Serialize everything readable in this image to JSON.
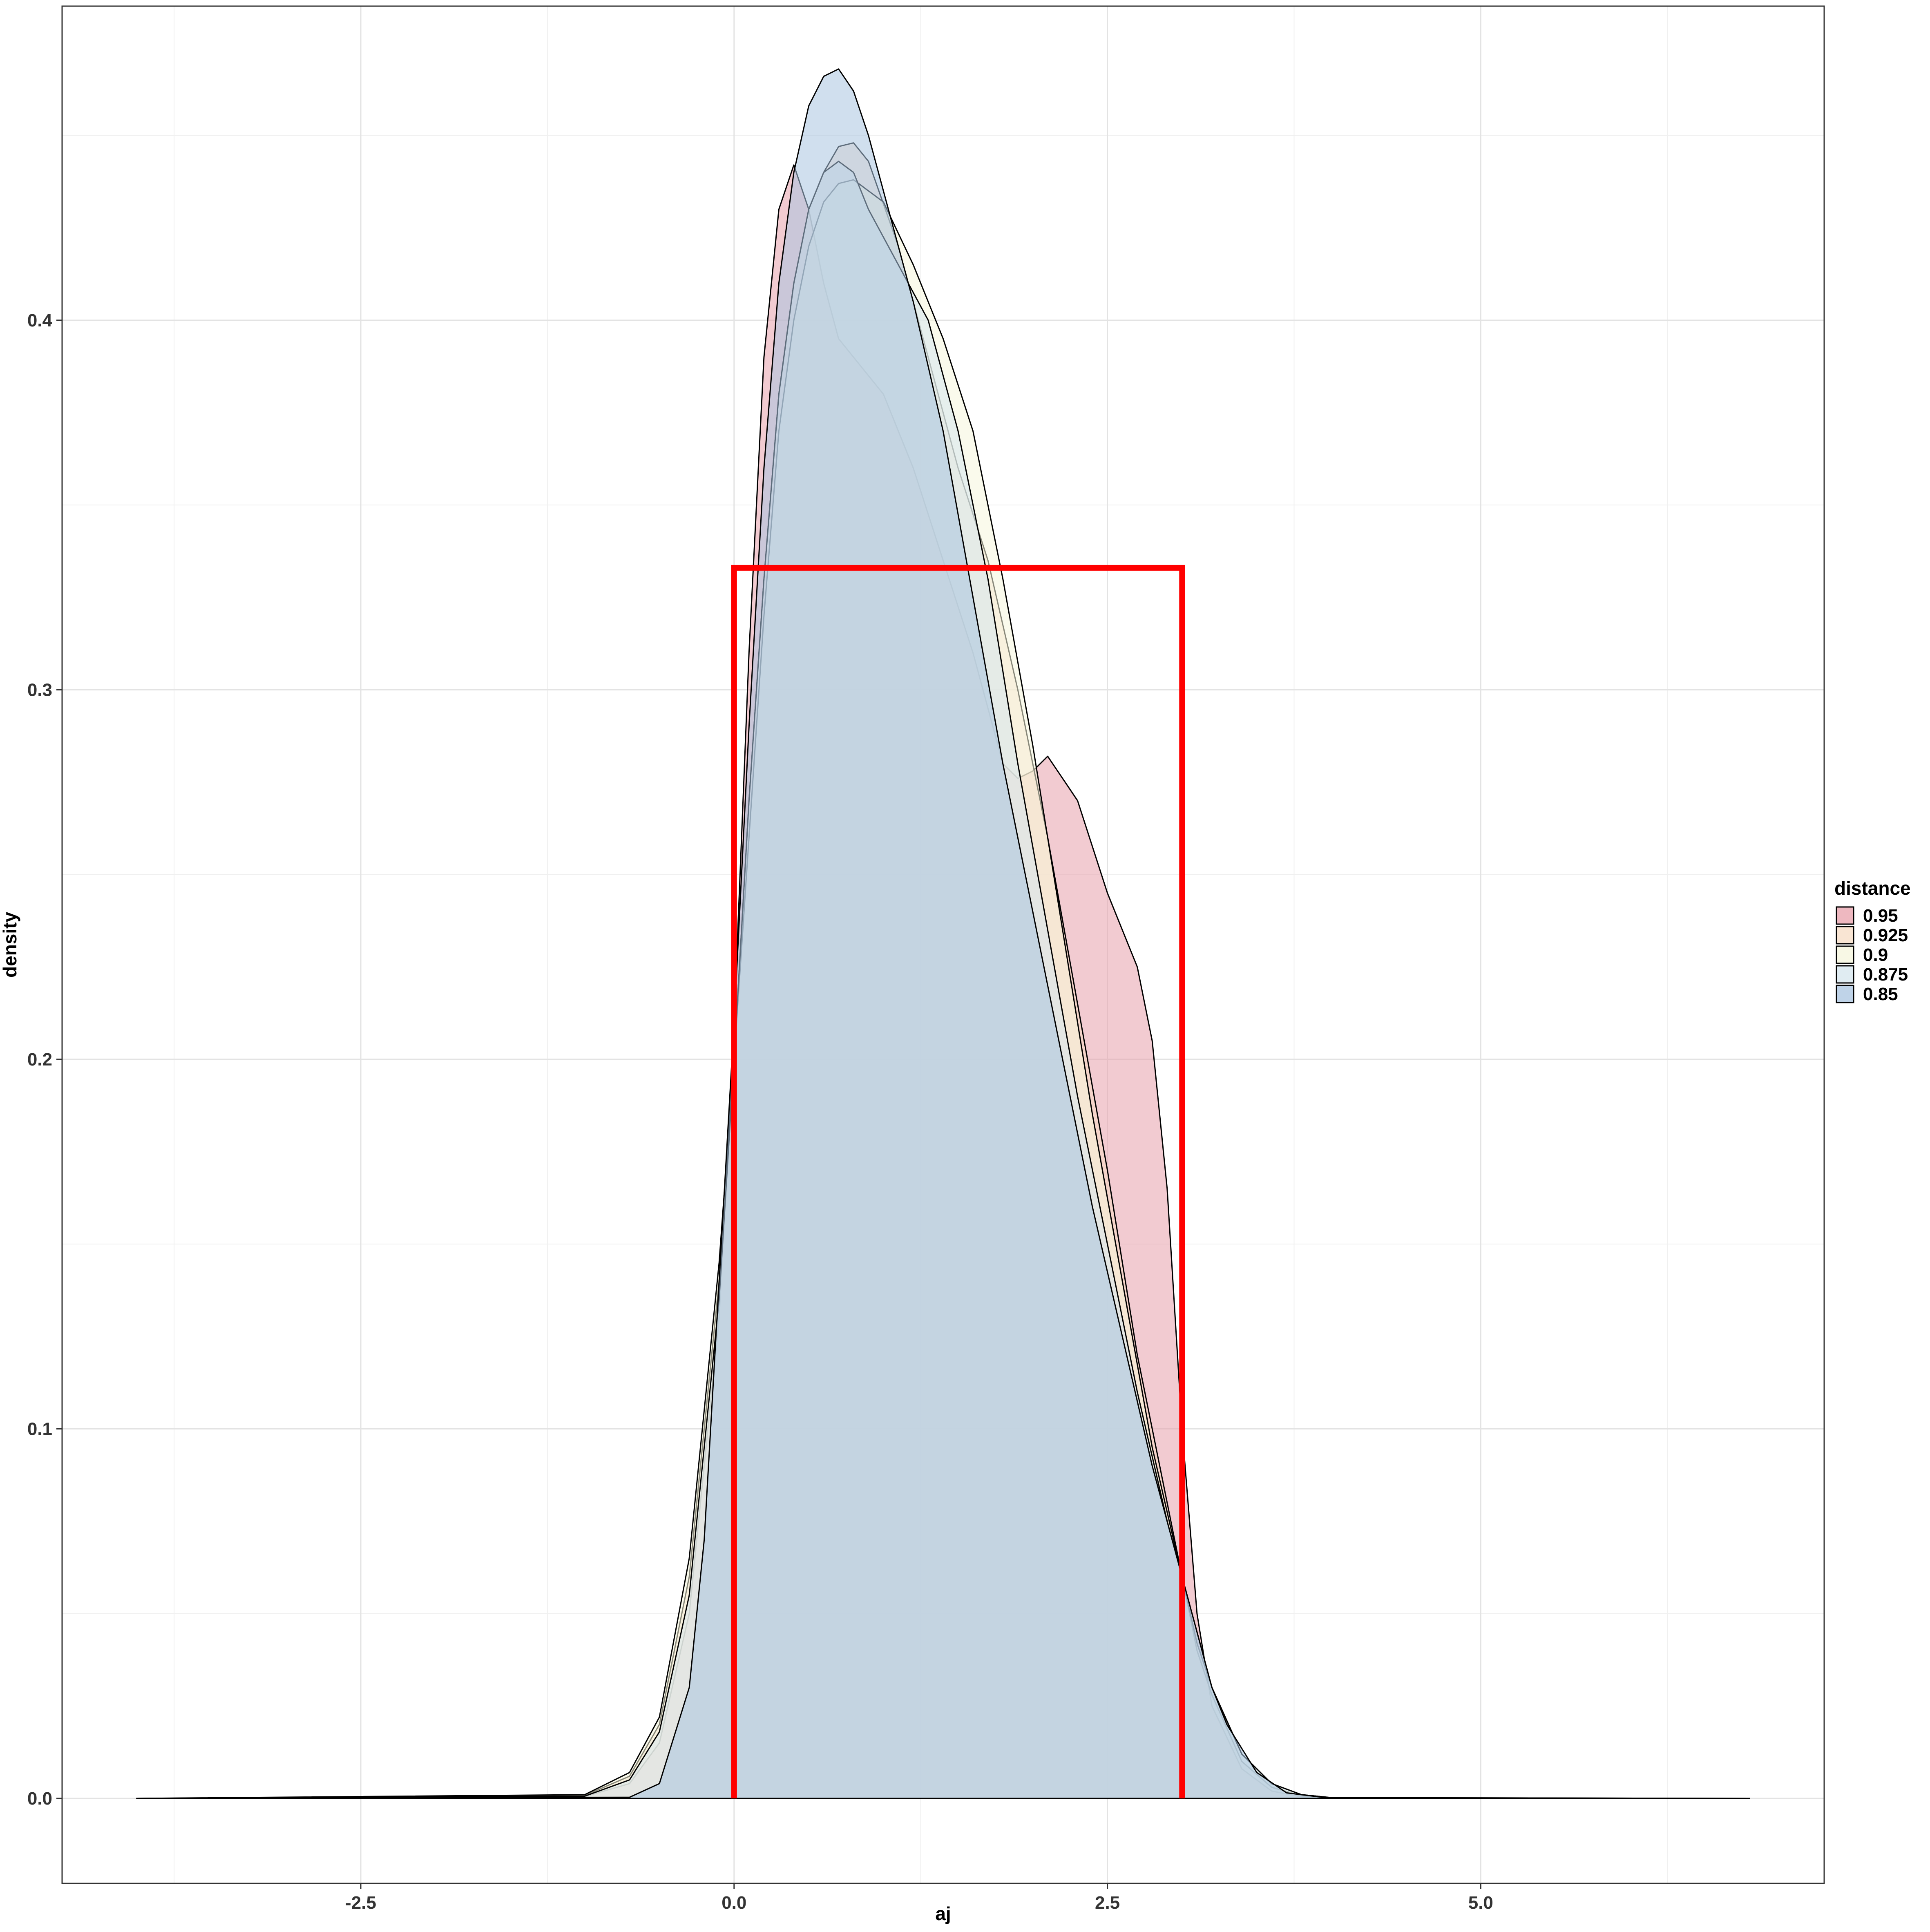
{
  "chart_data": {
    "type": "area",
    "xlabel": "aj",
    "ylabel": "density",
    "xlim": [
      -4.5,
      7.3
    ],
    "ylim": [
      -0.023,
      0.485
    ],
    "x_ticks": [
      -2.5,
      0.0,
      2.5,
      5.0
    ],
    "x_tick_labels": [
      "-2.5",
      "0.0",
      "2.5",
      "5.0"
    ],
    "y_ticks": [
      0.0,
      0.1,
      0.2,
      0.3,
      0.4
    ],
    "y_tick_labels": [
      "0.0",
      "0.1",
      "0.2",
      "0.3",
      "0.4"
    ],
    "grid": true,
    "legend": {
      "title": "distance",
      "position": "right",
      "entries": [
        {
          "label": "0.95",
          "color": "#e8a0ab"
        },
        {
          "label": "0.925",
          "color": "#f7dcc4"
        },
        {
          "label": "0.9",
          "color": "#f5f5dc"
        },
        {
          "label": "0.875",
          "color": "#d6e6ee"
        },
        {
          "label": "0.85",
          "color": "#a9c4e0"
        }
      ]
    },
    "series": [
      {
        "name": "0.95",
        "color": "#e8a0ab",
        "x": [
          -4.0,
          -1.0,
          -0.7,
          -0.5,
          -0.3,
          -0.1,
          0.0,
          0.1,
          0.2,
          0.3,
          0.4,
          0.5,
          0.6,
          0.7,
          0.9,
          1.0,
          1.2,
          1.4,
          1.6,
          1.8,
          1.9,
          2.0,
          2.1,
          2.3,
          2.5,
          2.6,
          2.7,
          2.8,
          2.9,
          3.0,
          3.1,
          3.2,
          3.4,
          3.6,
          3.8,
          4.0,
          6.8
        ],
        "y": [
          0.0,
          0.0005,
          0.004,
          0.015,
          0.05,
          0.13,
          0.21,
          0.31,
          0.39,
          0.43,
          0.442,
          0.43,
          0.41,
          0.395,
          0.385,
          0.38,
          0.36,
          0.335,
          0.31,
          0.28,
          0.276,
          0.278,
          0.282,
          0.27,
          0.245,
          0.235,
          0.225,
          0.205,
          0.165,
          0.1,
          0.05,
          0.025,
          0.008,
          0.002,
          0.0004,
          0.0,
          0.0
        ]
      },
      {
        "name": "0.925",
        "color": "#f7dcc4",
        "x": [
          -4.0,
          -1.0,
          -0.7,
          -0.5,
          -0.3,
          -0.1,
          0.0,
          0.1,
          0.2,
          0.3,
          0.4,
          0.5,
          0.6,
          0.7,
          0.8,
          0.9,
          1.1,
          1.3,
          1.5,
          1.7,
          1.9,
          2.1,
          2.3,
          2.5,
          2.7,
          2.9,
          3.0,
          3.1,
          3.2,
          3.4,
          3.6,
          3.8,
          4.0,
          6.8
        ],
        "y": [
          0.0,
          0.0008,
          0.006,
          0.02,
          0.06,
          0.14,
          0.2,
          0.27,
          0.33,
          0.38,
          0.41,
          0.43,
          0.44,
          0.447,
          0.448,
          0.443,
          0.42,
          0.39,
          0.36,
          0.335,
          0.3,
          0.26,
          0.215,
          0.17,
          0.12,
          0.08,
          0.06,
          0.04,
          0.028,
          0.01,
          0.003,
          0.0007,
          0.0001,
          0.0
        ]
      },
      {
        "name": "0.9",
        "color": "#f5f5dc",
        "x": [
          -4.0,
          -1.0,
          -0.7,
          -0.5,
          -0.3,
          -0.1,
          0.0,
          0.1,
          0.2,
          0.3,
          0.4,
          0.5,
          0.6,
          0.7,
          0.8,
          1.0,
          1.2,
          1.4,
          1.6,
          1.8,
          2.0,
          2.2,
          2.4,
          2.6,
          2.8,
          3.0,
          3.1,
          3.2,
          3.4,
          3.6,
          3.8,
          4.0,
          6.8
        ],
        "y": [
          0.0,
          0.001,
          0.007,
          0.022,
          0.065,
          0.145,
          0.2,
          0.26,
          0.32,
          0.37,
          0.4,
          0.42,
          0.432,
          0.437,
          0.438,
          0.432,
          0.415,
          0.395,
          0.37,
          0.33,
          0.285,
          0.235,
          0.185,
          0.14,
          0.095,
          0.06,
          0.042,
          0.03,
          0.012,
          0.004,
          0.001,
          0.0002,
          0.0
        ]
      },
      {
        "name": "0.875",
        "color": "#d6e6ee",
        "x": [
          -4.0,
          -1.0,
          -0.7,
          -0.5,
          -0.3,
          -0.1,
          0.0,
          0.1,
          0.2,
          0.3,
          0.4,
          0.5,
          0.6,
          0.7,
          0.8,
          0.9,
          1.1,
          1.3,
          1.5,
          1.7,
          1.9,
          2.1,
          2.3,
          2.5,
          2.7,
          2.9,
          3.0,
          3.1,
          3.2,
          3.4,
          3.6,
          3.8,
          4.0,
          6.8
        ],
        "y": [
          0.0,
          0.0006,
          0.005,
          0.018,
          0.055,
          0.135,
          0.2,
          0.27,
          0.33,
          0.38,
          0.41,
          0.43,
          0.44,
          0.443,
          0.44,
          0.43,
          0.415,
          0.4,
          0.37,
          0.33,
          0.28,
          0.235,
          0.19,
          0.15,
          0.11,
          0.075,
          0.06,
          0.045,
          0.03,
          0.012,
          0.004,
          0.001,
          0.0002,
          0.0
        ]
      },
      {
        "name": "0.85",
        "color": "#a9c4e0",
        "x": [
          -4.0,
          -0.7,
          -0.5,
          -0.3,
          -0.2,
          -0.1,
          0.0,
          0.1,
          0.2,
          0.3,
          0.4,
          0.5,
          0.6,
          0.7,
          0.8,
          0.9,
          1.0,
          1.2,
          1.4,
          1.6,
          1.8,
          2.0,
          2.2,
          2.4,
          2.6,
          2.8,
          3.0,
          3.1,
          3.2,
          3.3,
          3.5,
          3.7,
          4.0,
          6.8
        ],
        "y": [
          0.0,
          0.0003,
          0.004,
          0.03,
          0.07,
          0.14,
          0.21,
          0.29,
          0.36,
          0.41,
          0.44,
          0.458,
          0.466,
          0.468,
          0.462,
          0.45,
          0.435,
          0.405,
          0.37,
          0.325,
          0.28,
          0.24,
          0.2,
          0.16,
          0.125,
          0.09,
          0.06,
          0.045,
          0.03,
          0.02,
          0.007,
          0.0015,
          0.0,
          0.0
        ]
      }
    ],
    "uniform_overlay": {
      "color": "#ff0000",
      "x": [
        0.0,
        0.0,
        3.0,
        3.0
      ],
      "y": [
        0.0,
        0.333,
        0.333,
        0.0
      ]
    }
  }
}
